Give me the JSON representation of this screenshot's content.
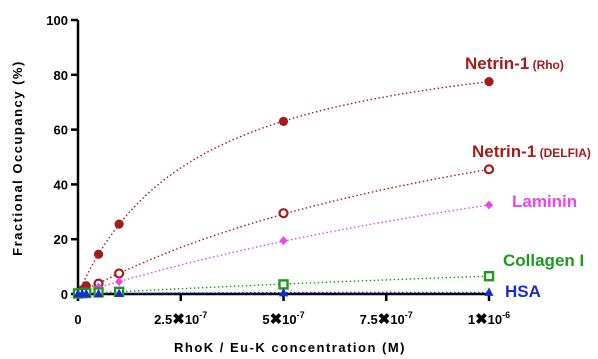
{
  "chart_data": {
    "type": "scatter",
    "title": "",
    "xlabel": "RhoK / Eu-K concentration (M)",
    "ylabel": "Fractional Occupancy (%)",
    "xlim": [
      0,
      1e-06
    ],
    "ylim": [
      0,
      100
    ],
    "y_ticks": [
      "0",
      "20",
      "40",
      "60",
      "80",
      "100"
    ],
    "x_ticks": [
      {
        "value": 0,
        "mantissa": "0",
        "times": "",
        "base": "",
        "exp": ""
      },
      {
        "value": 2.5e-07,
        "mantissa": "2.5",
        "times": "✖",
        "base": "10",
        "exp": "-7"
      },
      {
        "value": 5e-07,
        "mantissa": "5",
        "times": "✖",
        "base": "10",
        "exp": "-7"
      },
      {
        "value": 7.5e-07,
        "mantissa": "7.5",
        "times": "✖",
        "base": "10",
        "exp": "-7"
      },
      {
        "value": 1e-06,
        "mantissa": "1",
        "times": "✖",
        "base": "10",
        "exp": "-6"
      }
    ],
    "grid": false,
    "series": [
      {
        "name": "Netrin-1",
        "name_suffix": "(Rho)",
        "color": "#a51c1c",
        "marker": "filled-circle",
        "x": [
          0,
          1e-08,
          2e-08,
          5e-08,
          1e-07,
          5e-07,
          1e-06
        ],
        "y": [
          0.5,
          1.5,
          3.0,
          14.5,
          25.5,
          63.0,
          77.5
        ]
      },
      {
        "name": "Netrin-1",
        "name_suffix": "(DELFIA)",
        "color": "#a51c1c",
        "marker": "open-circle",
        "x": [
          0,
          1e-08,
          2e-08,
          5e-08,
          1e-07,
          5e-07,
          1e-06
        ],
        "y": [
          0.3,
          0.8,
          1.2,
          3.8,
          7.5,
          29.5,
          45.5
        ]
      },
      {
        "name": "Laminin",
        "name_suffix": "",
        "color": "#ee44ee",
        "marker": "diamond",
        "x": [
          0,
          1e-08,
          2e-08,
          5e-08,
          1e-07,
          5e-07,
          1e-06
        ],
        "y": [
          0.2,
          0.5,
          0.9,
          2.5,
          4.5,
          19.5,
          32.5
        ]
      },
      {
        "name": "Collagen I",
        "name_suffix": "",
        "color": "#1e9a1e",
        "marker": "square",
        "x": [
          0,
          1e-08,
          2e-08,
          5e-08,
          1e-07,
          5e-07,
          1e-06
        ],
        "y": [
          0.2,
          0.3,
          0.4,
          0.6,
          0.8,
          3.5,
          6.5
        ]
      },
      {
        "name": "HSA",
        "name_suffix": "",
        "color": "#1a2ccc",
        "marker": "triangle",
        "x": [
          0,
          1e-08,
          2e-08,
          5e-08,
          1e-07,
          5e-07,
          1e-06
        ],
        "y": [
          0,
          0,
          0.1,
          0.1,
          0.2,
          0.4,
          0.6
        ]
      }
    ]
  }
}
